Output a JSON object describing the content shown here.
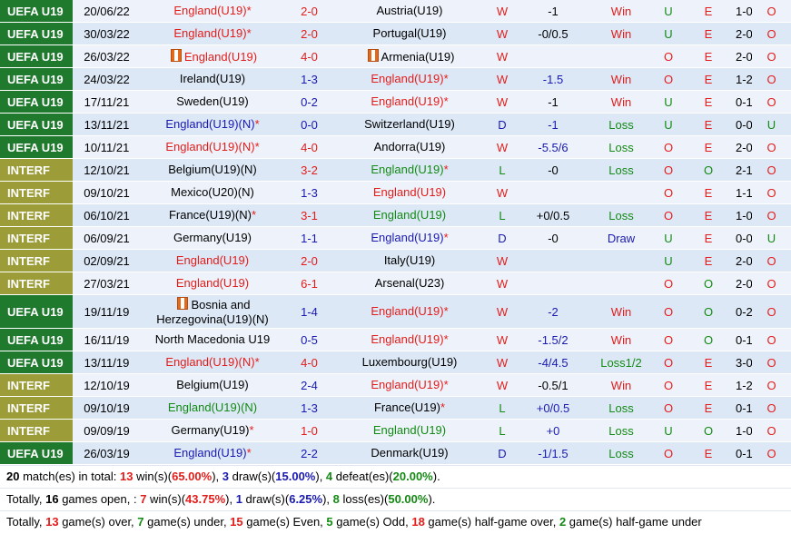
{
  "matches": [
    {
      "league": "UEFA U19",
      "league_type": "uefa",
      "date": "20/06/22",
      "home": "England(U19)",
      "home_star": "*",
      "home_color": "red",
      "home_flag": false,
      "score": "2-0",
      "score_color": "red",
      "away": "Austria(U19)",
      "away_star": "",
      "away_color": "black",
      "away_flag": false,
      "result": "W",
      "result_color": "red",
      "hcp": "-1",
      "hcp_color": "black",
      "hcp_result": "Win",
      "hcp_result_color": "red",
      "ou1": "U",
      "ou1_color": "green",
      "oe": "E",
      "oe_color": "red",
      "ht": "1-0",
      "ou2": "O",
      "ou2_color": "red"
    },
    {
      "league": "UEFA U19",
      "league_type": "uefa",
      "date": "30/03/22",
      "home": "England(U19)",
      "home_star": "*",
      "home_color": "red",
      "home_flag": false,
      "score": "2-0",
      "score_color": "red",
      "away": "Portugal(U19)",
      "away_star": "",
      "away_color": "black",
      "away_flag": false,
      "result": "W",
      "result_color": "red",
      "hcp": "-0/0.5",
      "hcp_color": "black",
      "hcp_result": "Win",
      "hcp_result_color": "red",
      "ou1": "U",
      "ou1_color": "green",
      "oe": "E",
      "oe_color": "red",
      "ht": "2-0",
      "ou2": "O",
      "ou2_color": "red"
    },
    {
      "league": "UEFA U19",
      "league_type": "uefa",
      "date": "26/03/22",
      "home": "England(U19)",
      "home_star": "",
      "home_color": "red",
      "home_flag": true,
      "score": "4-0",
      "score_color": "red",
      "away": "Armenia(U19)",
      "away_star": "",
      "away_color": "black",
      "away_flag": true,
      "result": "W",
      "result_color": "red",
      "hcp": "",
      "hcp_color": "black",
      "hcp_result": "",
      "hcp_result_color": "red",
      "ou1": "O",
      "ou1_color": "red",
      "oe": "E",
      "oe_color": "red",
      "ht": "2-0",
      "ou2": "O",
      "ou2_color": "red"
    },
    {
      "league": "UEFA U19",
      "league_type": "uefa",
      "date": "24/03/22",
      "home": "Ireland(U19)",
      "home_star": "",
      "home_color": "black",
      "home_flag": false,
      "score": "1-3",
      "score_color": "blue",
      "away": "England(U19)",
      "away_star": "*",
      "away_color": "red",
      "away_flag": false,
      "result": "W",
      "result_color": "red",
      "hcp": "-1.5",
      "hcp_color": "blue",
      "hcp_result": "Win",
      "hcp_result_color": "red",
      "ou1": "O",
      "ou1_color": "red",
      "oe": "E",
      "oe_color": "red",
      "ht": "1-2",
      "ou2": "O",
      "ou2_color": "red"
    },
    {
      "league": "UEFA U19",
      "league_type": "uefa",
      "date": "17/11/21",
      "home": "Sweden(U19)",
      "home_star": "",
      "home_color": "black",
      "home_flag": false,
      "score": "0-2",
      "score_color": "blue",
      "away": "England(U19)",
      "away_star": "*",
      "away_color": "red",
      "away_flag": false,
      "result": "W",
      "result_color": "red",
      "hcp": "-1",
      "hcp_color": "black",
      "hcp_result": "Win",
      "hcp_result_color": "red",
      "ou1": "U",
      "ou1_color": "green",
      "oe": "E",
      "oe_color": "red",
      "ht": "0-1",
      "ou2": "O",
      "ou2_color": "red"
    },
    {
      "league": "UEFA U19",
      "league_type": "uefa",
      "date": "13/11/21",
      "home": "England(U19)(N)",
      "home_star": "*",
      "home_color": "blue",
      "home_flag": false,
      "score": "0-0",
      "score_color": "blue",
      "away": "Switzerland(U19)",
      "away_star": "",
      "away_color": "black",
      "away_flag": false,
      "result": "D",
      "result_color": "blue",
      "hcp": "-1",
      "hcp_color": "blue",
      "hcp_result": "Loss",
      "hcp_result_color": "green",
      "ou1": "U",
      "ou1_color": "green",
      "oe": "E",
      "oe_color": "red",
      "ht": "0-0",
      "ou2": "U",
      "ou2_color": "green"
    },
    {
      "league": "UEFA U19",
      "league_type": "uefa",
      "date": "10/11/21",
      "home": "England(U19)(N)",
      "home_star": "*",
      "home_color": "red",
      "home_flag": false,
      "score": "4-0",
      "score_color": "red",
      "away": "Andorra(U19)",
      "away_star": "",
      "away_color": "black",
      "away_flag": false,
      "result": "W",
      "result_color": "red",
      "hcp": "-5.5/6",
      "hcp_color": "blue",
      "hcp_result": "Loss",
      "hcp_result_color": "green",
      "ou1": "O",
      "ou1_color": "red",
      "oe": "E",
      "oe_color": "red",
      "ht": "2-0",
      "ou2": "O",
      "ou2_color": "red"
    },
    {
      "league": "INTERF",
      "league_type": "interf",
      "date": "12/10/21",
      "home": "Belgium(U19)(N)",
      "home_star": "",
      "home_color": "black",
      "home_flag": false,
      "score": "3-2",
      "score_color": "red",
      "away": "England(U19)",
      "away_star": "*",
      "away_color": "green",
      "away_flag": false,
      "result": "L",
      "result_color": "green",
      "hcp": "-0",
      "hcp_color": "black",
      "hcp_result": "Loss",
      "hcp_result_color": "green",
      "ou1": "O",
      "ou1_color": "red",
      "oe": "O",
      "oe_color": "green",
      "ht": "2-1",
      "ou2": "O",
      "ou2_color": "red"
    },
    {
      "league": "INTERF",
      "league_type": "interf",
      "date": "09/10/21",
      "home": "Mexico(U20)(N)",
      "home_star": "",
      "home_color": "black",
      "home_flag": false,
      "score": "1-3",
      "score_color": "blue",
      "away": "England(U19)",
      "away_star": "",
      "away_color": "red",
      "away_flag": false,
      "result": "W",
      "result_color": "red",
      "hcp": "",
      "hcp_color": "black",
      "hcp_result": "",
      "hcp_result_color": "red",
      "ou1": "O",
      "ou1_color": "red",
      "oe": "E",
      "oe_color": "red",
      "ht": "1-1",
      "ou2": "O",
      "ou2_color": "red"
    },
    {
      "league": "INTERF",
      "league_type": "interf",
      "date": "06/10/21",
      "home": "France(U19)(N)",
      "home_star": "*",
      "home_color": "black",
      "home_flag": false,
      "score": "3-1",
      "score_color": "red",
      "away": "England(U19)",
      "away_star": "",
      "away_color": "green",
      "away_flag": false,
      "result": "L",
      "result_color": "green",
      "hcp": "+0/0.5",
      "hcp_color": "black",
      "hcp_result": "Loss",
      "hcp_result_color": "green",
      "ou1": "O",
      "ou1_color": "red",
      "oe": "E",
      "oe_color": "red",
      "ht": "1-0",
      "ou2": "O",
      "ou2_color": "red"
    },
    {
      "league": "INTERF",
      "league_type": "interf",
      "date": "06/09/21",
      "home": "Germany(U19)",
      "home_star": "",
      "home_color": "black",
      "home_flag": false,
      "score": "1-1",
      "score_color": "blue",
      "away": "England(U19)",
      "away_star": "*",
      "away_color": "blue",
      "away_flag": false,
      "result": "D",
      "result_color": "blue",
      "hcp": "-0",
      "hcp_color": "black",
      "hcp_result": "Draw",
      "hcp_result_color": "blue",
      "ou1": "U",
      "ou1_color": "green",
      "oe": "E",
      "oe_color": "red",
      "ht": "0-0",
      "ou2": "U",
      "ou2_color": "green"
    },
    {
      "league": "INTERF",
      "league_type": "interf",
      "date": "02/09/21",
      "home": "England(U19)",
      "home_star": "",
      "home_color": "red",
      "home_flag": false,
      "score": "2-0",
      "score_color": "red",
      "away": "Italy(U19)",
      "away_star": "",
      "away_color": "black",
      "away_flag": false,
      "result": "W",
      "result_color": "red",
      "hcp": "",
      "hcp_color": "black",
      "hcp_result": "",
      "hcp_result_color": "red",
      "ou1": "U",
      "ou1_color": "green",
      "oe": "E",
      "oe_color": "red",
      "ht": "2-0",
      "ou2": "O",
      "ou2_color": "red"
    },
    {
      "league": "INTERF",
      "league_type": "interf",
      "date": "27/03/21",
      "home": "England(U19)",
      "home_star": "",
      "home_color": "red",
      "home_flag": false,
      "score": "6-1",
      "score_color": "red",
      "away": "Arsenal(U23)",
      "away_star": "",
      "away_color": "black",
      "away_flag": false,
      "result": "W",
      "result_color": "red",
      "hcp": "",
      "hcp_color": "black",
      "hcp_result": "",
      "hcp_result_color": "red",
      "ou1": "O",
      "ou1_color": "red",
      "oe": "O",
      "oe_color": "green",
      "ht": "2-0",
      "ou2": "O",
      "ou2_color": "red"
    },
    {
      "league": "UEFA U19",
      "league_type": "uefa",
      "date": "19/11/19",
      "home": "Bosnia and Herzegovina(U19)(N)",
      "home_star": "",
      "home_color": "black",
      "home_flag": true,
      "tall": true,
      "score": "1-4",
      "score_color": "blue",
      "away": "England(U19)",
      "away_star": "*",
      "away_color": "red",
      "away_flag": false,
      "result": "W",
      "result_color": "red",
      "hcp": "-2",
      "hcp_color": "blue",
      "hcp_result": "Win",
      "hcp_result_color": "red",
      "ou1": "O",
      "ou1_color": "red",
      "oe": "O",
      "oe_color": "green",
      "ht": "0-2",
      "ou2": "O",
      "ou2_color": "red"
    },
    {
      "league": "UEFA U19",
      "league_type": "uefa",
      "date": "16/11/19",
      "home": "North Macedonia U19",
      "home_star": "",
      "home_color": "black",
      "home_flag": false,
      "score": "0-5",
      "score_color": "blue",
      "away": "England(U19)",
      "away_star": "*",
      "away_color": "red",
      "away_flag": false,
      "result": "W",
      "result_color": "red",
      "hcp": "-1.5/2",
      "hcp_color": "blue",
      "hcp_result": "Win",
      "hcp_result_color": "red",
      "ou1": "O",
      "ou1_color": "red",
      "oe": "O",
      "oe_color": "green",
      "ht": "0-1",
      "ou2": "O",
      "ou2_color": "red"
    },
    {
      "league": "UEFA U19",
      "league_type": "uefa",
      "date": "13/11/19",
      "home": "England(U19)(N)",
      "home_star": "*",
      "home_color": "red",
      "home_flag": false,
      "score": "4-0",
      "score_color": "red",
      "away": "Luxembourg(U19)",
      "away_star": "",
      "away_color": "black",
      "away_flag": false,
      "result": "W",
      "result_color": "red",
      "hcp": "-4/4.5",
      "hcp_color": "blue",
      "hcp_result": "Loss1/2",
      "hcp_result_color": "green",
      "ou1": "O",
      "ou1_color": "red",
      "oe": "E",
      "oe_color": "red",
      "ht": "3-0",
      "ou2": "O",
      "ou2_color": "red"
    },
    {
      "league": "INTERF",
      "league_type": "interf",
      "date": "12/10/19",
      "home": "Belgium(U19)",
      "home_star": "",
      "home_color": "black",
      "home_flag": false,
      "score": "2-4",
      "score_color": "blue",
      "away": "England(U19)",
      "away_star": "*",
      "away_color": "red",
      "away_flag": false,
      "result": "W",
      "result_color": "red",
      "hcp": "-0.5/1",
      "hcp_color": "black",
      "hcp_result": "Win",
      "hcp_result_color": "red",
      "ou1": "O",
      "ou1_color": "red",
      "oe": "E",
      "oe_color": "red",
      "ht": "1-2",
      "ou2": "O",
      "ou2_color": "red"
    },
    {
      "league": "INTERF",
      "league_type": "interf",
      "date": "09/10/19",
      "home": "England(U19)(N)",
      "home_star": "",
      "home_color": "green",
      "home_flag": false,
      "score": "1-3",
      "score_color": "blue",
      "away": "France(U19)",
      "away_star": "*",
      "away_color": "black",
      "away_flag": false,
      "result": "L",
      "result_color": "green",
      "hcp": "+0/0.5",
      "hcp_color": "blue",
      "hcp_result": "Loss",
      "hcp_result_color": "green",
      "ou1": "O",
      "ou1_color": "red",
      "oe": "E",
      "oe_color": "red",
      "ht": "0-1",
      "ou2": "O",
      "ou2_color": "red"
    },
    {
      "league": "INTERF",
      "league_type": "interf",
      "date": "09/09/19",
      "home": "Germany(U19)",
      "home_star": "*",
      "home_color": "black",
      "home_flag": false,
      "score": "1-0",
      "score_color": "red",
      "away": "England(U19)",
      "away_star": "",
      "away_color": "green",
      "away_flag": false,
      "result": "L",
      "result_color": "green",
      "hcp": "+0",
      "hcp_color": "blue",
      "hcp_result": "Loss",
      "hcp_result_color": "green",
      "ou1": "U",
      "ou1_color": "green",
      "oe": "O",
      "oe_color": "green",
      "ht": "1-0",
      "ou2": "O",
      "ou2_color": "red"
    },
    {
      "league": "UEFA U19",
      "league_type": "uefa",
      "date": "26/03/19",
      "home": "England(U19)",
      "home_star": "*",
      "home_color": "blue",
      "home_flag": false,
      "score": "2-2",
      "score_color": "blue",
      "away": "Denmark(U19)",
      "away_star": "",
      "away_color": "black",
      "away_flag": false,
      "result": "D",
      "result_color": "blue",
      "hcp": "-1/1.5",
      "hcp_color": "blue",
      "hcp_result": "Loss",
      "hcp_result_color": "green",
      "ou1": "O",
      "ou1_color": "red",
      "oe": "E",
      "oe_color": "red",
      "ht": "0-1",
      "ou2": "O",
      "ou2_color": "red"
    }
  ],
  "summary": {
    "line1": {
      "total": "20",
      "t1": " match(es) in total: ",
      "wins": "13",
      "t2": " win(s)(",
      "win_pct": "65.00%",
      "t3": "), ",
      "draws": "3",
      "t4": " draw(s)(",
      "draw_pct": "15.00%",
      "t5": "), ",
      "defeats": "4",
      "t6": " defeat(es)(",
      "defeat_pct": "20.00%",
      "t7": ")."
    },
    "line2": {
      "t0": "Totally, ",
      "open": "16",
      "t1": " games open, : ",
      "wins": "7",
      "t2": " win(s)(",
      "win_pct": "43.75%",
      "t3": "), ",
      "draws": "1",
      "t4": " draw(s)(",
      "draw_pct": "6.25%",
      "t5": "), ",
      "losses": "8",
      "t6": " loss(es)(",
      "loss_pct": "50.00%",
      "t7": ")."
    },
    "line3": {
      "t0": "Totally, ",
      "over": "13",
      "t1": " game(s) over, ",
      "under": "7",
      "t2": " game(s) under, ",
      "even": "15",
      "t3": " game(s) Even, ",
      "odd": "5",
      "t4": " game(s) Odd, ",
      "ht_over": "18",
      "t5": " game(s) half-game over, ",
      "ht_under": "2",
      "t6": " game(s) half-game under"
    }
  }
}
